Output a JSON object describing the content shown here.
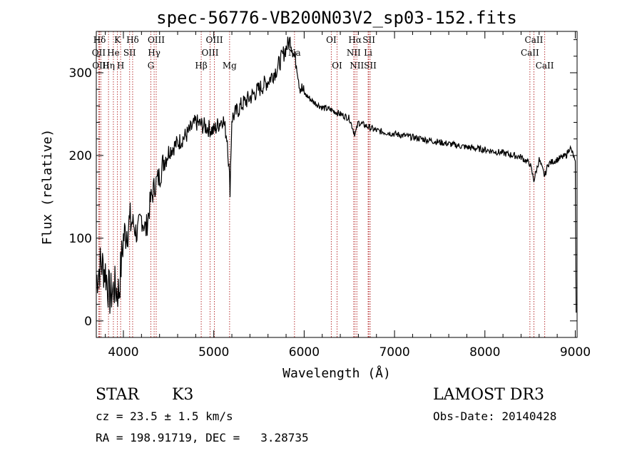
{
  "chart_data": {
    "type": "line",
    "title": "spec-56776-VB200N03V2_sp03-152.fits",
    "xlabel": "Wavelength (Å)",
    "ylabel": "Flux (relative)",
    "xlim": [
      3700,
      9020
    ],
    "ylim": [
      -20,
      350
    ],
    "xticks": [
      4000,
      5000,
      6000,
      7000,
      8000,
      9000
    ],
    "yticks": [
      0,
      100,
      200,
      300
    ],
    "grid": false,
    "line_color": "#000000",
    "marker_color": "#b22222",
    "x": [
      3700,
      3750,
      3800,
      3850,
      3900,
      3950,
      4000,
      4050,
      4100,
      4150,
      4200,
      4250,
      4300,
      4350,
      4400,
      4450,
      4500,
      4600,
      4700,
      4800,
      4900,
      5000,
      5100,
      5150,
      5180,
      5200,
      5300,
      5400,
      5500,
      5600,
      5700,
      5800,
      5850,
      5890,
      5920,
      5950,
      6000,
      6100,
      6200,
      6300,
      6400,
      6500,
      6563,
      6600,
      6700,
      6800,
      6900,
      7000,
      7200,
      7400,
      7600,
      7800,
      8000,
      8200,
      8400,
      8498,
      8542,
      8600,
      8662,
      8700,
      8800,
      8900,
      8940,
      8980,
      9000,
      9010
    ],
    "y": [
      50,
      70,
      60,
      30,
      40,
      35,
      100,
      115,
      120,
      105,
      125,
      110,
      145,
      165,
      175,
      195,
      205,
      215,
      225,
      240,
      235,
      230,
      245,
      220,
      160,
      245,
      260,
      270,
      280,
      290,
      305,
      330,
      340,
      320,
      310,
      285,
      275,
      265,
      258,
      255,
      250,
      245,
      225,
      240,
      235,
      230,
      228,
      226,
      222,
      218,
      214,
      210,
      207,
      203,
      198,
      190,
      170,
      195,
      175,
      190,
      195,
      200,
      210,
      200,
      190,
      10
    ],
    "lines": [
      {
        "label": "Hδ",
        "wave": 3736,
        "row": 0
      },
      {
        "label": "OII",
        "wave": 3727,
        "row": 1
      },
      {
        "label": "OIII",
        "wave": 3750,
        "row": 2
      },
      {
        "label": "He",
        "wave": 3889,
        "row": 1
      },
      {
        "label": "Hη",
        "wave": 3835,
        "row": 2
      },
      {
        "label": "K",
        "wave": 3934,
        "row": 0
      },
      {
        "label": "SII",
        "wave": 4069,
        "row": 1
      },
      {
        "label": "H",
        "wave": 3969,
        "row": 2
      },
      {
        "label": "Hδ",
        "wave": 4102,
        "row": 0
      },
      {
        "label": "OIII",
        "wave": 4363,
        "row": 0
      },
      {
        "label": "Hγ",
        "wave": 4340,
        "row": 1
      },
      {
        "label": "G",
        "wave": 4304,
        "row": 2
      },
      {
        "label": "OIII",
        "wave": 5007,
        "row": 0
      },
      {
        "label": "OIII",
        "wave": 4959,
        "row": 1
      },
      {
        "label": "Hβ",
        "wave": 4861,
        "row": 2
      },
      {
        "label": "Mg",
        "wave": 5175,
        "row": 2
      },
      {
        "label": "Na",
        "wave": 5893,
        "row": 1
      },
      {
        "label": "OI",
        "wave": 6300,
        "row": 0
      },
      {
        "label": "OI",
        "wave": 6364,
        "row": 2
      },
      {
        "label": "Hα",
        "wave": 6563,
        "row": 0
      },
      {
        "label": "NII",
        "wave": 6548,
        "row": 1
      },
      {
        "label": "NII",
        "wave": 6583,
        "row": 2
      },
      {
        "label": "SII",
        "wave": 6716,
        "row": 0
      },
      {
        "label": "Li",
        "wave": 6708,
        "row": 1
      },
      {
        "label": "SII",
        "wave": 6731,
        "row": 2
      },
      {
        "label": "CaII",
        "wave": 8542,
        "row": 0
      },
      {
        "label": "CaII",
        "wave": 8498,
        "row": 1
      },
      {
        "label": "CaII",
        "wave": 8662,
        "row": 2
      }
    ]
  },
  "info": {
    "obj_class": "STAR",
    "subclass": "K3",
    "survey": "LAMOST DR3",
    "cz": "cz = 23.5 ± 1.5 km/s",
    "obs_date": "Obs-Date: 20140428",
    "coords": "RA = 198.91719, DEC =   3.28735"
  }
}
